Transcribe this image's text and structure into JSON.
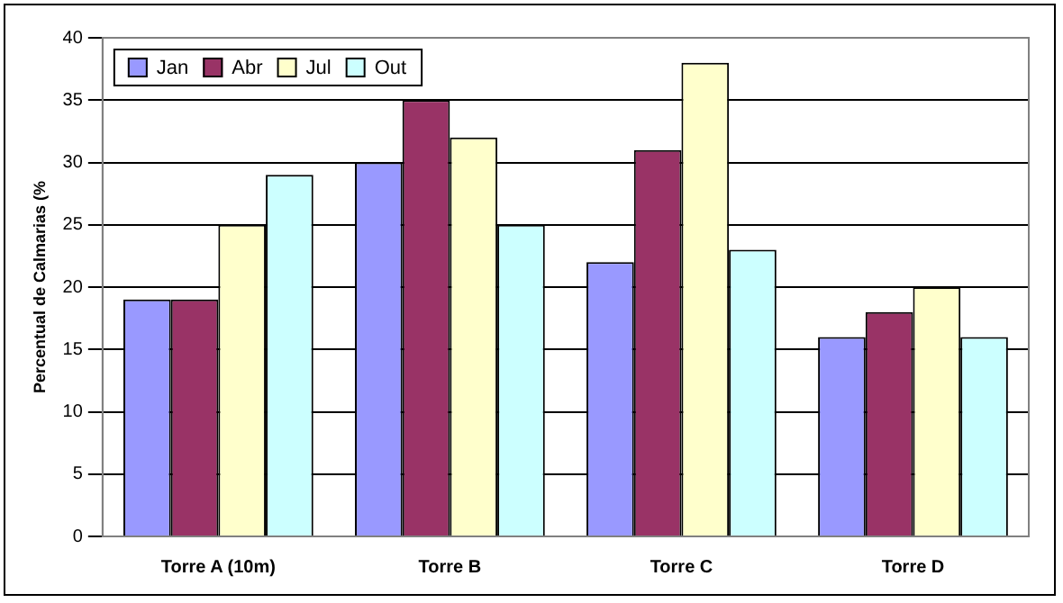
{
  "chart_data": {
    "type": "bar",
    "ylabel": "Percentual de Calmarias (%",
    "categories": [
      "Torre A (10m)",
      "Torre B",
      "Torre C",
      "Torre D"
    ],
    "series": [
      {
        "name": "Jan",
        "color": "#9999ff",
        "values": [
          19,
          30,
          22,
          16
        ]
      },
      {
        "name": "Abr",
        "color": "#993366",
        "values": [
          19,
          35,
          31,
          18
        ]
      },
      {
        "name": "Jul",
        "color": "#ffffcc",
        "values": [
          25,
          32,
          38,
          20
        ]
      },
      {
        "name": "Out",
        "color": "#ccffff",
        "values": [
          29,
          25,
          23,
          16
        ]
      }
    ],
    "ylim": [
      0,
      40
    ],
    "yticks": [
      0,
      5,
      10,
      15,
      20,
      25,
      30,
      35,
      40
    ],
    "grid": "y",
    "legend": "top left"
  }
}
